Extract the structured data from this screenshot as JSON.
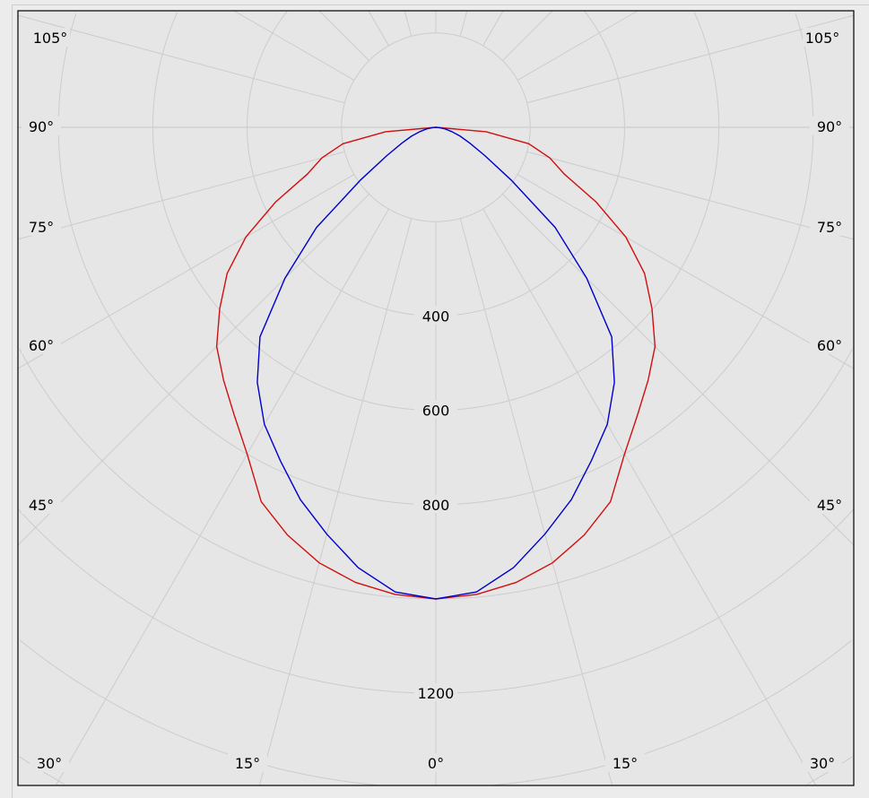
{
  "chart_data": {
    "type": "polar",
    "angle_unit": "degrees",
    "angle_zero": "down",
    "radial_range": [
      0,
      1400
    ],
    "radial_grid_step": 200,
    "angular_grid_step": 15,
    "grid": true,
    "radial_tick_labels": [
      "400",
      "600",
      "800",
      "1200"
    ],
    "radial_tick_values": [
      400,
      600,
      800,
      1200
    ],
    "angle_tick_labels": {
      "left": [
        "105°",
        "90°",
        "75°",
        "60°",
        "45°",
        "30°"
      ],
      "bottom": [
        "15°",
        "0°",
        "15°"
      ],
      "right": [
        "30°",
        "45°",
        "60°",
        "75°",
        "90°",
        "105°"
      ]
    },
    "angles": [
      0,
      5,
      10,
      15,
      20,
      25,
      30,
      35,
      40,
      45,
      50,
      55,
      60,
      65,
      70,
      75,
      80,
      85,
      90
    ],
    "series": [
      {
        "color": "#d01010",
        "symmetric": true,
        "values": [
          1000,
          994,
          980,
          956,
          920,
          876,
          800,
          745,
          700,
          657,
          598,
          540,
          465,
          375,
          290,
          250,
          200,
          107,
          0
        ]
      },
      {
        "color": "#0000cc",
        "symmetric": true,
        "values": [
          1000,
          989,
          948,
          893,
          840,
          780,
          727,
          660,
          580,
          452,
          330,
          195,
          120,
          80,
          55,
          35,
          20,
          8,
          0
        ]
      }
    ]
  }
}
